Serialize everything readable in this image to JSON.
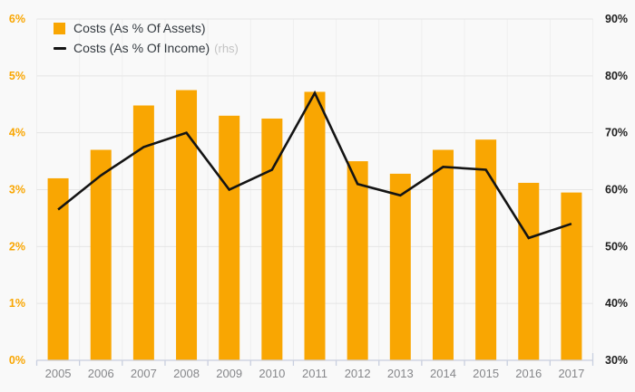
{
  "chart_data": {
    "type": "combo",
    "title": "",
    "categories": [
      "2005",
      "2006",
      "2007",
      "2008",
      "2009",
      "2010",
      "2011",
      "2012",
      "2013",
      "2014",
      "2015",
      "2016",
      "2017"
    ],
    "series": [
      {
        "name": "Costs (As % Of Assets)",
        "type": "bar",
        "axis": "left",
        "color": "#f9a602",
        "values": [
          3.2,
          3.7,
          4.48,
          4.75,
          4.3,
          4.25,
          4.72,
          3.5,
          3.28,
          3.7,
          3.88,
          3.12,
          2.95
        ]
      },
      {
        "name": "Costs (As % Of Income)",
        "axis_note": "(rhs)",
        "type": "line",
        "axis": "right",
        "color": "#141414",
        "values": [
          56.5,
          62.5,
          67.5,
          70,
          60,
          63.5,
          77,
          61,
          59,
          64,
          63.5,
          51.5,
          54
        ]
      }
    ],
    "left_axis": {
      "min": 0,
      "max": 6,
      "tick_step": 1,
      "ticks": [
        "0%",
        "1%",
        "2%",
        "3%",
        "4%",
        "5%",
        "6%"
      ],
      "label_color": "#f9a602"
    },
    "right_axis": {
      "min": 30,
      "max": 90,
      "tick_step": 10,
      "ticks": [
        "30%",
        "40%",
        "50%",
        "60%",
        "70%",
        "80%",
        "90%"
      ],
      "label_color": "#1f1f1f"
    },
    "grid": true,
    "legend_position": "top-left",
    "x_label_color": "#86878a"
  },
  "style_colors": {
    "background": "#f9f9f9",
    "h_gridline": "#e5e5e5",
    "v_gridline": "#efefef",
    "axis_line": "#c9cfdf"
  }
}
